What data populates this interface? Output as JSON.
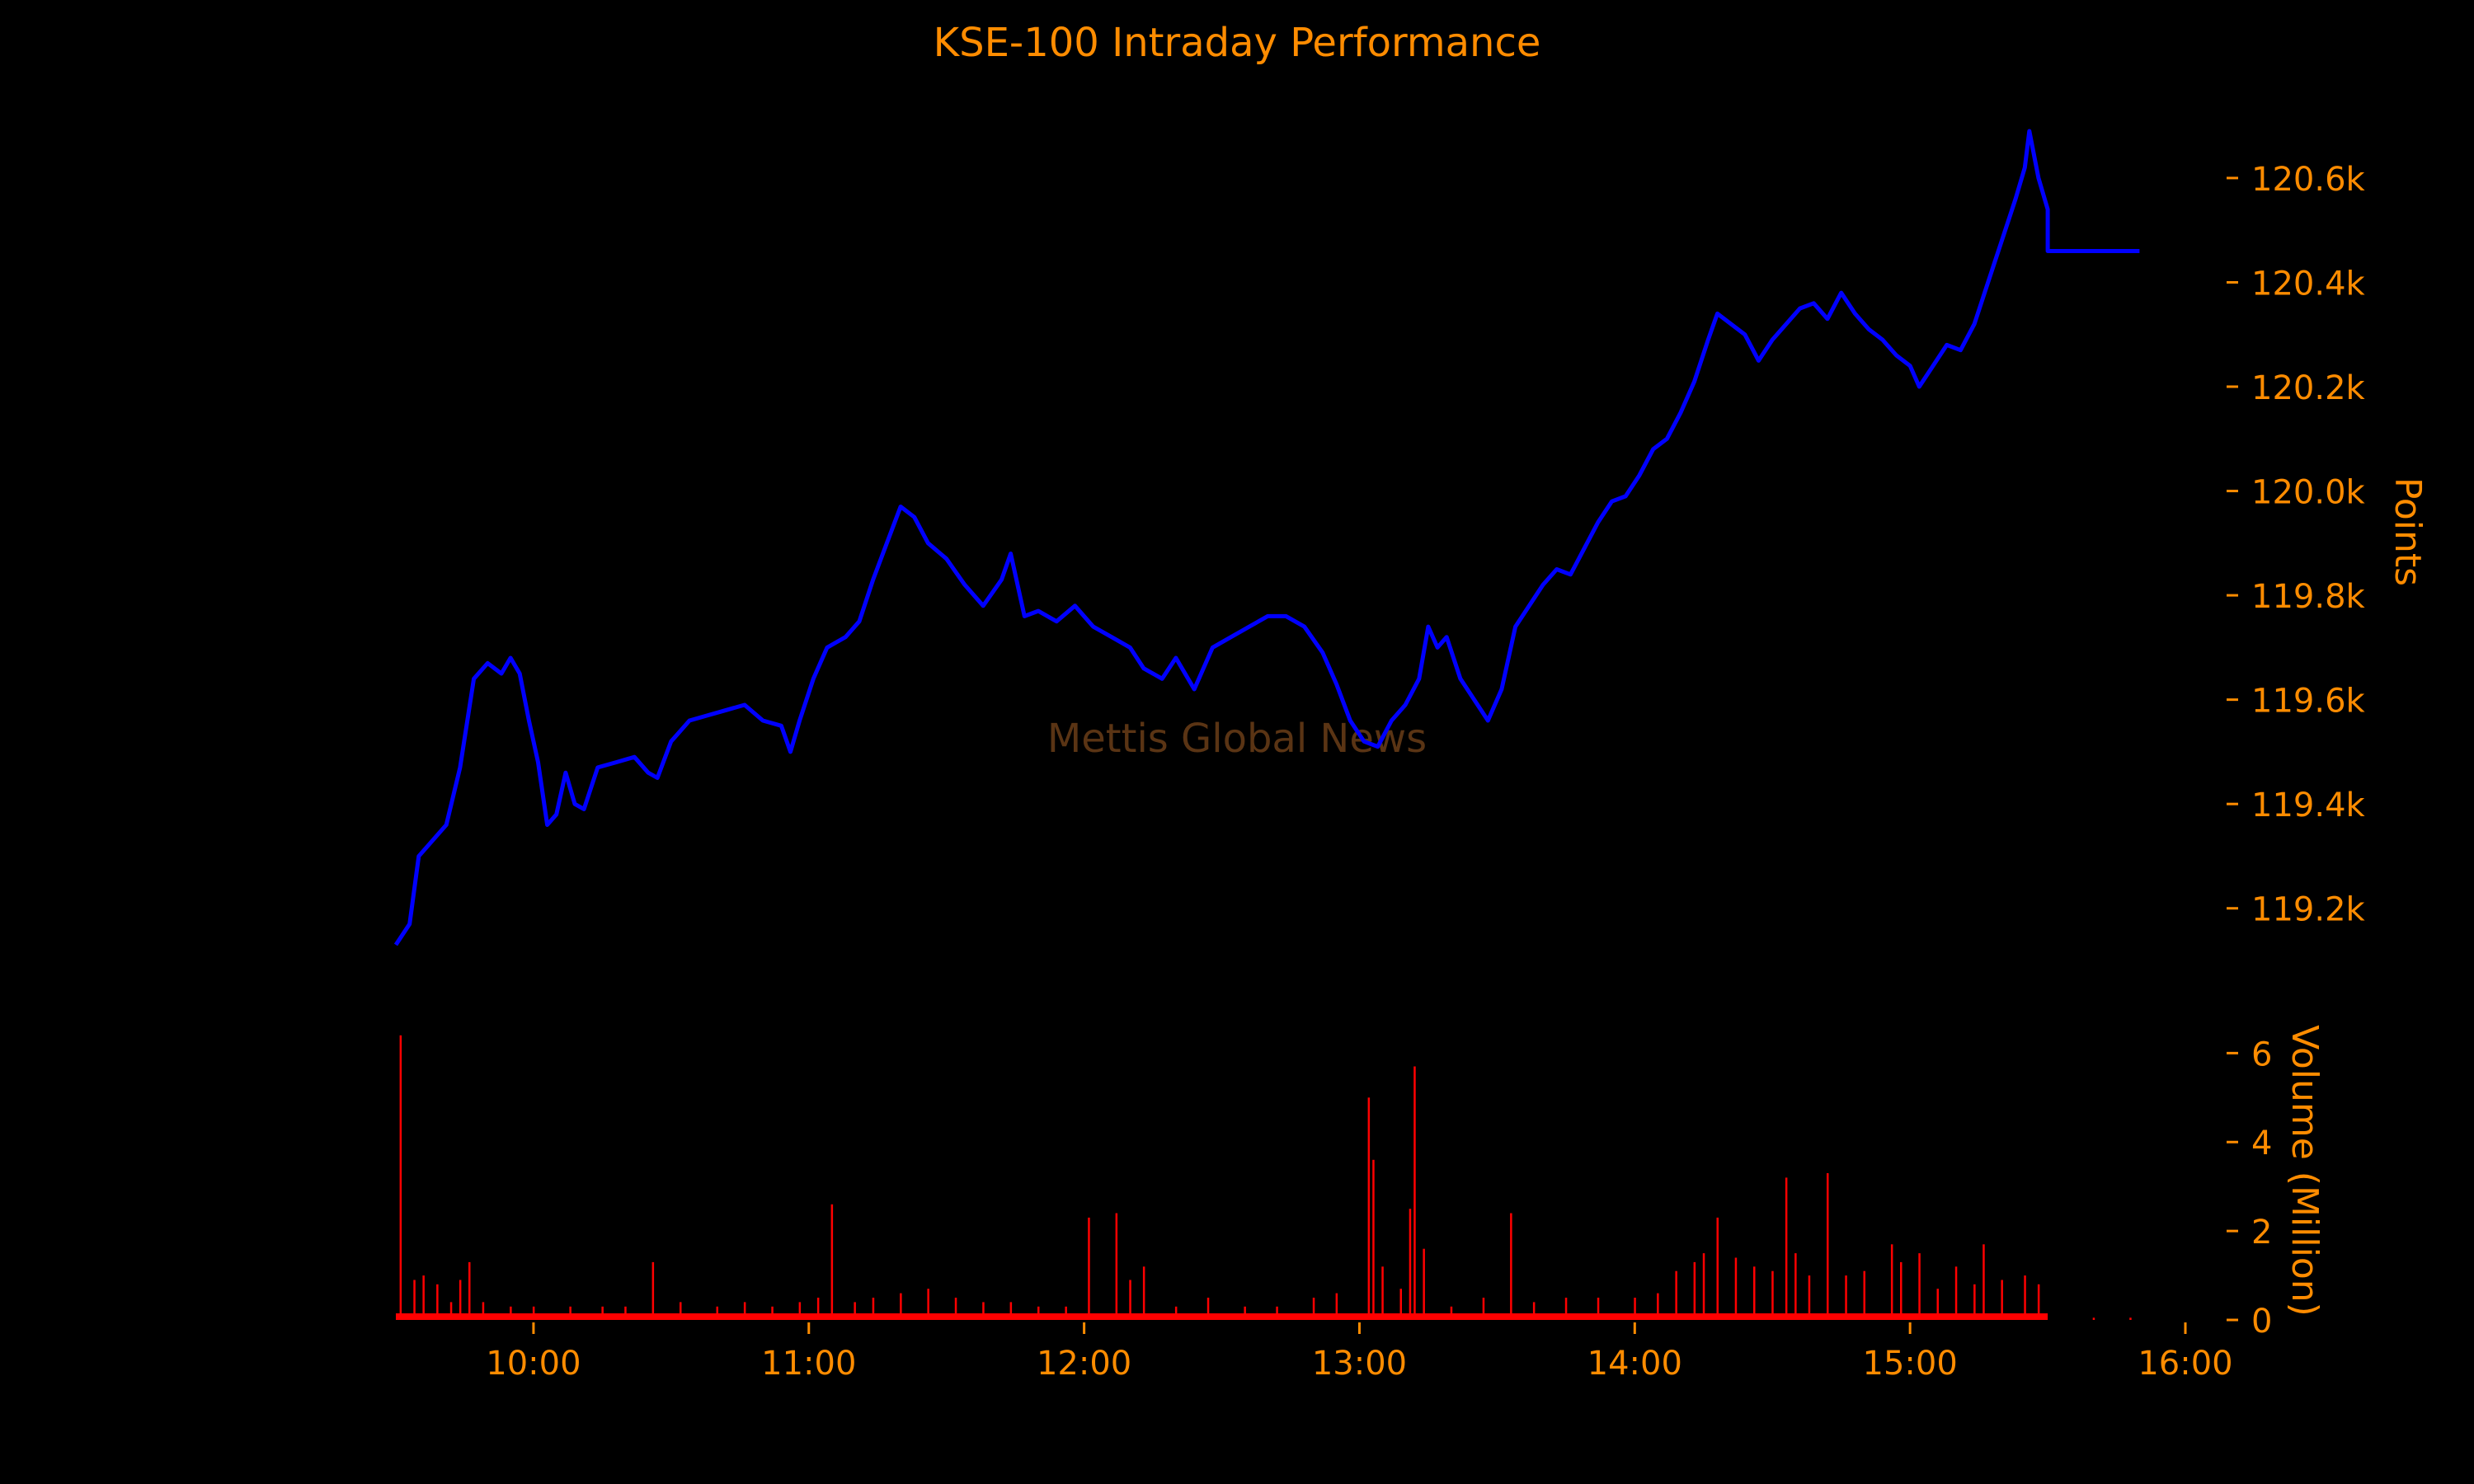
{
  "chart_data": {
    "type": "line",
    "title": "KSE-100 Intraday Performance",
    "watermark": "Mettis Global News",
    "colors": {
      "background": "#000000",
      "text": "#ff8c00",
      "line": "#0000ff",
      "volume": "#ff0000",
      "watermark": "#5a3414"
    },
    "x_axis": {
      "range": [
        "09:30",
        "16:00"
      ],
      "ticks": [
        "10:00",
        "11:00",
        "12:00",
        "13:00",
        "14:00",
        "15:00",
        "16:00"
      ]
    },
    "price_axis": {
      "label": "Points",
      "position": "right",
      "range": [
        119100,
        120720
      ],
      "ticks": [
        119200,
        119400,
        119600,
        119800,
        120000,
        120200,
        120400,
        120600
      ],
      "tick_labels": [
        "119.2k",
        "119.4k",
        "119.6k",
        "119.8k",
        "120.0k",
        "120.2k",
        "120.4k",
        "120.6k"
      ]
    },
    "volume_axis": {
      "label": "Volume (Million)",
      "position": "right",
      "range": [
        0,
        6.6
      ],
      "ticks": [
        0,
        2,
        4,
        6
      ],
      "tick_labels": [
        "0",
        "2",
        "4",
        "6"
      ]
    },
    "price_series": {
      "name": "KSE-100",
      "points": [
        [
          "09:30",
          119130
        ],
        [
          "09:33",
          119170
        ],
        [
          "09:35",
          119300
        ],
        [
          "09:38",
          119330
        ],
        [
          "09:41",
          119360
        ],
        [
          "09:44",
          119470
        ],
        [
          "09:47",
          119640
        ],
        [
          "09:50",
          119670
        ],
        [
          "09:53",
          119650
        ],
        [
          "09:55",
          119680
        ],
        [
          "09:57",
          119650
        ],
        [
          "09:59",
          119560
        ],
        [
          "10:01",
          119480
        ],
        [
          "10:03",
          119360
        ],
        [
          "10:05",
          119380
        ],
        [
          "10:07",
          119460
        ],
        [
          "10:09",
          119400
        ],
        [
          "10:11",
          119390
        ],
        [
          "10:14",
          119470
        ],
        [
          "10:18",
          119480
        ],
        [
          "10:22",
          119490
        ],
        [
          "10:25",
          119460
        ],
        [
          "10:27",
          119450
        ],
        [
          "10:30",
          119520
        ],
        [
          "10:34",
          119560
        ],
        [
          "10:38",
          119570
        ],
        [
          "10:42",
          119580
        ],
        [
          "10:46",
          119590
        ],
        [
          "10:50",
          119560
        ],
        [
          "10:54",
          119550
        ],
        [
          "10:56",
          119500
        ],
        [
          "10:58",
          119560
        ],
        [
          "11:01",
          119640
        ],
        [
          "11:04",
          119700
        ],
        [
          "11:08",
          119720
        ],
        [
          "11:11",
          119750
        ],
        [
          "11:14",
          119830
        ],
        [
          "11:17",
          119900
        ],
        [
          "11:20",
          119970
        ],
        [
          "11:23",
          119950
        ],
        [
          "11:26",
          119900
        ],
        [
          "11:30",
          119870
        ],
        [
          "11:34",
          119820
        ],
        [
          "11:38",
          119780
        ],
        [
          "11:42",
          119830
        ],
        [
          "11:44",
          119880
        ],
        [
          "11:47",
          119760
        ],
        [
          "11:50",
          119770
        ],
        [
          "11:54",
          119750
        ],
        [
          "11:58",
          119780
        ],
        [
          "12:02",
          119740
        ],
        [
          "12:06",
          119720
        ],
        [
          "12:10",
          119700
        ],
        [
          "12:13",
          119660
        ],
        [
          "12:17",
          119640
        ],
        [
          "12:20",
          119680
        ],
        [
          "12:24",
          119620
        ],
        [
          "12:28",
          119700
        ],
        [
          "12:32",
          119720
        ],
        [
          "12:36",
          119740
        ],
        [
          "12:40",
          119760
        ],
        [
          "12:44",
          119760
        ],
        [
          "12:48",
          119740
        ],
        [
          "12:52",
          119690
        ],
        [
          "12:55",
          119630
        ],
        [
          "12:58",
          119560
        ],
        [
          "13:01",
          119520
        ],
        [
          "13:04",
          119510
        ],
        [
          "13:07",
          119560
        ],
        [
          "13:10",
          119590
        ],
        [
          "13:13",
          119640
        ],
        [
          "13:15",
          119740
        ],
        [
          "13:17",
          119700
        ],
        [
          "13:19",
          119720
        ],
        [
          "13:22",
          119640
        ],
        [
          "13:25",
          119600
        ],
        [
          "13:28",
          119560
        ],
        [
          "13:31",
          119620
        ],
        [
          "13:34",
          119740
        ],
        [
          "13:37",
          119780
        ],
        [
          "13:40",
          119820
        ],
        [
          "13:43",
          119850
        ],
        [
          "13:46",
          119840
        ],
        [
          "13:49",
          119890
        ],
        [
          "13:52",
          119940
        ],
        [
          "13:55",
          119980
        ],
        [
          "13:58",
          119990
        ],
        [
          "14:01",
          120030
        ],
        [
          "14:04",
          120080
        ],
        [
          "14:07",
          120100
        ],
        [
          "14:10",
          120150
        ],
        [
          "14:13",
          120210
        ],
        [
          "14:16",
          120290
        ],
        [
          "14:18",
          120340
        ],
        [
          "14:21",
          120320
        ],
        [
          "14:24",
          120300
        ],
        [
          "14:27",
          120250
        ],
        [
          "14:30",
          120290
        ],
        [
          "14:33",
          120320
        ],
        [
          "14:36",
          120350
        ],
        [
          "14:39",
          120360
        ],
        [
          "14:42",
          120330
        ],
        [
          "14:45",
          120380
        ],
        [
          "14:48",
          120340
        ],
        [
          "14:51",
          120310
        ],
        [
          "14:54",
          120290
        ],
        [
          "14:57",
          120260
        ],
        [
          "15:00",
          120240
        ],
        [
          "15:02",
          120200
        ],
        [
          "15:05",
          120240
        ],
        [
          "15:08",
          120280
        ],
        [
          "15:11",
          120270
        ],
        [
          "15:14",
          120320
        ],
        [
          "15:17",
          120400
        ],
        [
          "15:20",
          120480
        ],
        [
          "15:23",
          120560
        ],
        [
          "15:25",
          120620
        ],
        [
          "15:26",
          120690
        ],
        [
          "15:28",
          120600
        ],
        [
          "15:30",
          120540
        ],
        [
          "15:30",
          120460
        ],
        [
          "15:50",
          120460
        ]
      ]
    },
    "volume_series": {
      "name": "Volume",
      "points": [
        [
          "09:31",
          6.4
        ],
        [
          "09:34",
          0.9
        ],
        [
          "09:36",
          1.0
        ],
        [
          "09:39",
          0.8
        ],
        [
          "09:42",
          0.4
        ],
        [
          "09:44",
          0.9
        ],
        [
          "09:46",
          1.3
        ],
        [
          "09:49",
          0.4
        ],
        [
          "09:55",
          0.3
        ],
        [
          "10:00",
          0.3
        ],
        [
          "10:08",
          0.3
        ],
        [
          "10:15",
          0.3
        ],
        [
          "10:20",
          0.3
        ],
        [
          "10:26",
          1.3
        ],
        [
          "10:32",
          0.4
        ],
        [
          "10:40",
          0.3
        ],
        [
          "10:46",
          0.4
        ],
        [
          "10:52",
          0.3
        ],
        [
          "10:58",
          0.4
        ],
        [
          "11:02",
          0.5
        ],
        [
          "11:05",
          2.6
        ],
        [
          "11:10",
          0.4
        ],
        [
          "11:14",
          0.5
        ],
        [
          "11:20",
          0.6
        ],
        [
          "11:26",
          0.7
        ],
        [
          "11:32",
          0.5
        ],
        [
          "11:38",
          0.4
        ],
        [
          "11:44",
          0.4
        ],
        [
          "11:50",
          0.3
        ],
        [
          "11:56",
          0.3
        ],
        [
          "12:01",
          2.3
        ],
        [
          "12:07",
          2.4
        ],
        [
          "12:10",
          0.9
        ],
        [
          "12:13",
          1.2
        ],
        [
          "12:20",
          0.3
        ],
        [
          "12:27",
          0.5
        ],
        [
          "12:35",
          0.3
        ],
        [
          "12:42",
          0.3
        ],
        [
          "12:50",
          0.5
        ],
        [
          "12:55",
          0.6
        ],
        [
          "13:02",
          5.0
        ],
        [
          "13:03",
          3.6
        ],
        [
          "13:05",
          1.2
        ],
        [
          "13:09",
          0.7
        ],
        [
          "13:11",
          2.5
        ],
        [
          "13:12",
          5.7
        ],
        [
          "13:14",
          1.6
        ],
        [
          "13:20",
          0.3
        ],
        [
          "13:27",
          0.5
        ],
        [
          "13:33",
          2.4
        ],
        [
          "13:38",
          0.4
        ],
        [
          "13:45",
          0.5
        ],
        [
          "13:52",
          0.5
        ],
        [
          "14:00",
          0.5
        ],
        [
          "14:05",
          0.6
        ],
        [
          "14:09",
          1.1
        ],
        [
          "14:13",
          1.3
        ],
        [
          "14:15",
          1.5
        ],
        [
          "14:18",
          2.3
        ],
        [
          "14:22",
          1.4
        ],
        [
          "14:26",
          1.2
        ],
        [
          "14:30",
          1.1
        ],
        [
          "14:33",
          3.2
        ],
        [
          "14:35",
          1.5
        ],
        [
          "14:38",
          1.0
        ],
        [
          "14:42",
          3.3
        ],
        [
          "14:46",
          1.0
        ],
        [
          "14:50",
          1.1
        ],
        [
          "14:56",
          1.7
        ],
        [
          "14:58",
          1.3
        ],
        [
          "15:02",
          1.5
        ],
        [
          "15:06",
          0.7
        ],
        [
          "15:10",
          1.2
        ],
        [
          "15:14",
          0.8
        ],
        [
          "15:16",
          1.7
        ],
        [
          "15:20",
          0.9
        ],
        [
          "15:25",
          1.0
        ],
        [
          "15:28",
          0.8
        ],
        [
          "15:40",
          0.05
        ],
        [
          "15:48",
          0.05
        ]
      ]
    }
  }
}
